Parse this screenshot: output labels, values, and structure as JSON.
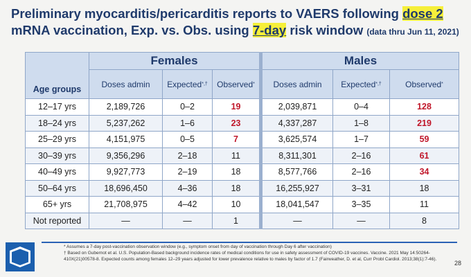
{
  "title": {
    "part1": "Preliminary myocarditis/pericarditis reports to VAERS following ",
    "dose": "dose 2",
    "part2": "mRNA vaccination, Exp. vs. Obs. using ",
    "window": "7-day",
    "part3": " risk window ",
    "note": "(data thru Jun 11, 2021)"
  },
  "table": {
    "group_female": "Females",
    "group_male": "Males",
    "age_header": "Age groups",
    "doses_header": "Doses admin",
    "expected_header": "Expected",
    "expected_sup": "*,†",
    "observed_header": "Observed",
    "observed_sup": "*",
    "rows": [
      {
        "age": "12–17 yrs",
        "f_doses": "2,189,726",
        "f_exp": "0–2",
        "f_obs": "19",
        "m_doses": "2,039,871",
        "m_exp": "0–4",
        "m_obs": "128",
        "f_red": true,
        "m_red": true
      },
      {
        "age": "18–24 yrs",
        "f_doses": "5,237,262",
        "f_exp": "1–6",
        "f_obs": "23",
        "m_doses": "4,337,287",
        "m_exp": "1–8",
        "m_obs": "219",
        "f_red": true,
        "m_red": true
      },
      {
        "age": "25–29 yrs",
        "f_doses": "4,151,975",
        "f_exp": "0–5",
        "f_obs": "7",
        "m_doses": "3,625,574",
        "m_exp": "1–7",
        "m_obs": "59",
        "f_red": true,
        "m_red": true
      },
      {
        "age": "30–39 yrs",
        "f_doses": "9,356,296",
        "f_exp": "2–18",
        "f_obs": "11",
        "m_doses": "8,311,301",
        "m_exp": "2–16",
        "m_obs": "61",
        "f_red": false,
        "m_red": true
      },
      {
        "age": "40–49 yrs",
        "f_doses": "9,927,773",
        "f_exp": "2–19",
        "f_obs": "18",
        "m_doses": "8,577,766",
        "m_exp": "2–16",
        "m_obs": "34",
        "f_red": false,
        "m_red": true
      },
      {
        "age": "50–64 yrs",
        "f_doses": "18,696,450",
        "f_exp": "4–36",
        "f_obs": "18",
        "m_doses": "16,255,927",
        "m_exp": "3–31",
        "m_obs": "18",
        "f_red": false,
        "m_red": false
      },
      {
        "age": "65+ yrs",
        "f_doses": "21,708,975",
        "f_exp": "4–42",
        "f_obs": "10",
        "m_doses": "18,041,547",
        "m_exp": "3–35",
        "m_obs": "11",
        "f_red": false,
        "m_red": false
      },
      {
        "age": "Not reported",
        "f_doses": "—",
        "f_exp": "—",
        "f_obs": "1",
        "m_doses": "—",
        "m_exp": "—",
        "m_obs": "8",
        "f_red": false,
        "m_red": false
      }
    ]
  },
  "footer": {
    "logo_text": "CDC",
    "note1": "* Assumes a 7-day post-vaccination observation window (e.g., symptom onset from day of vaccination through Day 6 after vaccination)",
    "note2": "† Based on Gubernot et al. U.S. Population-Based background incidence rates of medical conditions for use in safety assessment of COVID-19 vaccines. Vaccine. 2021 May 14:50264-410X(21)00578-8. Expected counts among females 12–29 years adjusted for lower prevalence relative to males by factor of 1.7 (Fairweather, D. et al, Curr Probl Cardiol. 2013;38(1):7-46).",
    "page": "28"
  },
  "colors": {
    "title": "#1f3a6b",
    "highlight": "#f6ef3a",
    "header_bg": "#cfdcee",
    "observed_red": "#c0172a"
  }
}
